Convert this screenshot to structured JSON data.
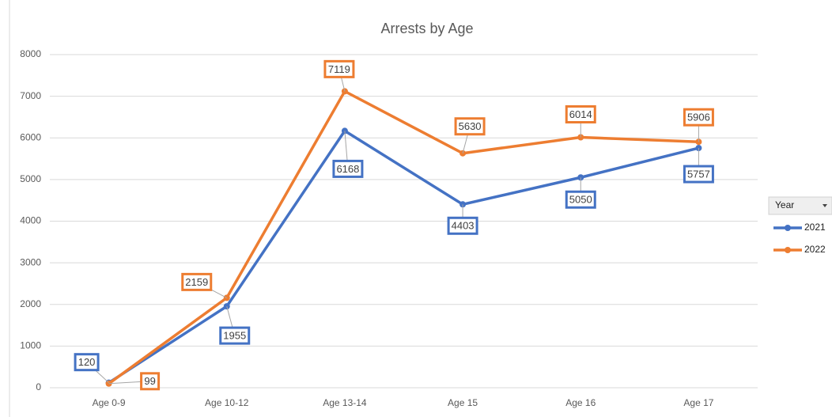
{
  "chart_data": {
    "type": "line",
    "title": "Arrests by Age",
    "categories": [
      "Age 0-9",
      "Age 10-12",
      "Age 13-14",
      "Age 15",
      "Age 16",
      "Age 17"
    ],
    "series": [
      {
        "name": "2021",
        "color": "#4472c4",
        "values": [
          120,
          1955,
          6168,
          4403,
          5050,
          5757
        ]
      },
      {
        "name": "2022",
        "color": "#ed7d31",
        "values": [
          99,
          2159,
          7119,
          5630,
          6014,
          5906
        ]
      }
    ],
    "ylim": [
      0,
      8000
    ],
    "yticks": [
      0,
      1000,
      2000,
      3000,
      4000,
      5000,
      6000,
      7000,
      8000
    ],
    "grid": true,
    "legend_title": "Year",
    "legend_position": "right",
    "data_labels": true
  }
}
